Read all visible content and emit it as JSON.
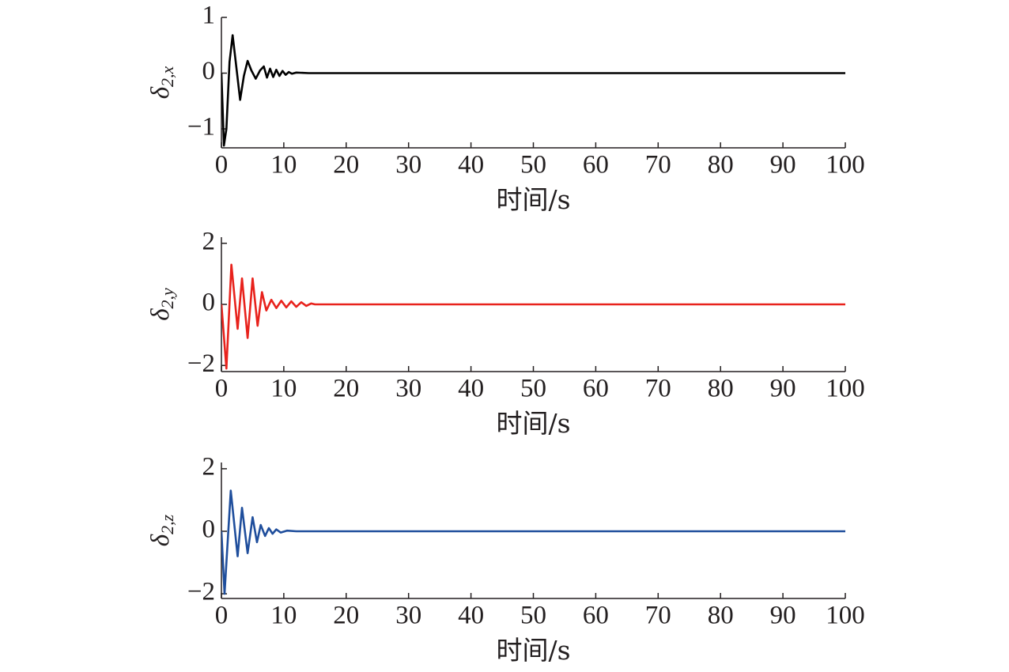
{
  "chart_data": [
    {
      "type": "line",
      "xlabel": "时间/s",
      "ylabel": {
        "symbol": "δ",
        "subscript": "2,x"
      },
      "xlim": [
        0,
        100
      ],
      "xticks": [
        0,
        10,
        20,
        30,
        40,
        50,
        60,
        70,
        80,
        90,
        100
      ],
      "ylim": [
        -1.34,
        1
      ],
      "yticks": [
        {
          "value": -1,
          "label": "−1"
        },
        0,
        1
      ],
      "x": [
        0,
        0.4,
        0.8,
        1.3,
        1.8,
        2.4,
        3,
        3.6,
        4.2,
        4.8,
        5.5,
        6.2,
        6.8,
        7.3,
        7.8,
        8.3,
        8.8,
        9.3,
        9.8,
        10.3,
        10.8,
        11.3,
        12,
        14,
        20,
        40,
        60,
        80,
        100
      ],
      "series": [
        {
          "color": "#000000",
          "values": [
            0,
            -1.3,
            -1.0,
            0.2,
            0.68,
            0.1,
            -0.48,
            -0.05,
            0.22,
            0.05,
            -0.1,
            0.05,
            0.12,
            -0.08,
            0.08,
            -0.07,
            0.06,
            -0.05,
            0.04,
            -0.03,
            0.02,
            -0.01,
            0.01,
            0,
            0,
            0,
            0,
            0,
            0
          ]
        }
      ]
    },
    {
      "type": "line",
      "xlabel": "时间/s",
      "ylabel": {
        "symbol": "δ",
        "subscript": "2,y"
      },
      "xlim": [
        0,
        100
      ],
      "xticks": [
        0,
        10,
        20,
        30,
        40,
        50,
        60,
        70,
        80,
        90,
        100
      ],
      "ylim": [
        -2.2,
        2.2
      ],
      "yticks": [
        {
          "value": -2,
          "label": "−2"
        },
        0,
        2
      ],
      "x": [
        0,
        0.8,
        1.6,
        2.6,
        3.3,
        4.2,
        5.0,
        5.8,
        6.5,
        7.2,
        8,
        8.8,
        9.6,
        10.4,
        11.2,
        12,
        12.8,
        13.6,
        14.4,
        15,
        20,
        40,
        60,
        80,
        100
      ],
      "series": [
        {
          "color": "#e8221c",
          "values": [
            0,
            -2.1,
            1.3,
            -0.8,
            0.85,
            -1.1,
            0.85,
            -0.7,
            0.4,
            -0.2,
            0.15,
            -0.12,
            0.12,
            -0.1,
            0.1,
            -0.08,
            0.07,
            -0.05,
            0.03,
            0,
            0,
            0,
            0,
            0,
            0
          ]
        }
      ]
    },
    {
      "type": "line",
      "xlabel": "时间/s",
      "ylabel": {
        "symbol": "δ",
        "subscript": "2,z"
      },
      "xlim": [
        0,
        100
      ],
      "xticks": [
        0,
        10,
        20,
        30,
        40,
        50,
        60,
        70,
        80,
        90,
        100
      ],
      "ylim": [
        -2.15,
        2.2
      ],
      "yticks": [
        {
          "value": -2,
          "label": "−2"
        },
        0,
        2
      ],
      "x": [
        0,
        0.5,
        1.5,
        2.6,
        3.3,
        4.2,
        5,
        5.7,
        6.3,
        7,
        7.6,
        8.2,
        8.8,
        9.5,
        10.5,
        12,
        20,
        40,
        60,
        80,
        100
      ],
      "series": [
        {
          "color": "#1f4e9c",
          "values": [
            0,
            -2,
            1.3,
            -0.8,
            0.75,
            -0.7,
            0.45,
            -0.35,
            0.2,
            -0.15,
            0.1,
            -0.08,
            0.06,
            -0.04,
            0.02,
            0,
            0,
            0,
            0,
            0,
            0
          ]
        }
      ]
    }
  ]
}
